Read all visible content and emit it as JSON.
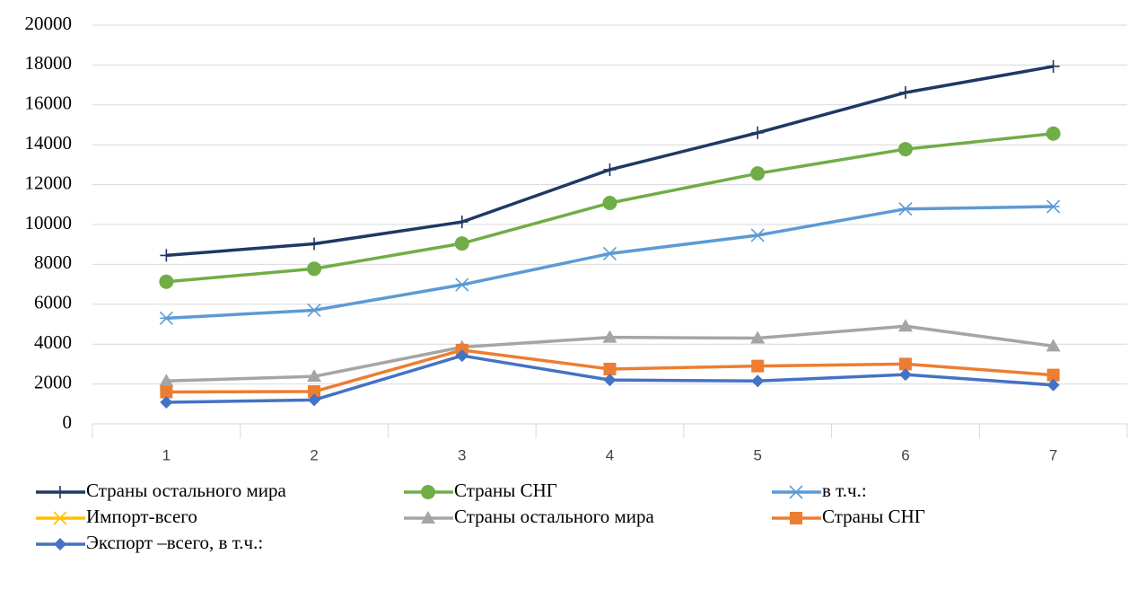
{
  "chart_data": {
    "type": "line",
    "categories": [
      "1",
      "2",
      "3",
      "4",
      "5",
      "6",
      "7"
    ],
    "series": [
      {
        "name": "Страны остального мира",
        "color": "#1f3864",
        "marker": "plus",
        "values": [
          8450,
          9030,
          10130,
          12750,
          14600,
          16620,
          17930
        ]
      },
      {
        "name": "Страны СНГ",
        "color": "#70ad47",
        "marker": "circle",
        "values": [
          7130,
          7780,
          9050,
          11080,
          12560,
          13780,
          14560
        ]
      },
      {
        "name": "в т.ч.:",
        "color": "#5b9bd5",
        "marker": "asterisk",
        "values": [
          5300,
          5700,
          6980,
          8540,
          9460,
          10780,
          10900
        ]
      },
      {
        "name": "Импорт-всего",
        "color": "#ffc000",
        "marker": "x",
        "values": [
          null,
          null,
          null,
          null,
          null,
          null,
          null
        ]
      },
      {
        "name": "Страны остального мира",
        "color": "#a5a5a5",
        "marker": "triangle",
        "values": [
          2150,
          2380,
          3850,
          4340,
          4300,
          4900,
          3900
        ]
      },
      {
        "name": "Страны СНГ",
        "color": "#ed7d31",
        "marker": "square",
        "values": [
          1600,
          1620,
          3700,
          2750,
          2900,
          3000,
          2450
        ]
      },
      {
        "name": "Экспорт –всего, в т.ч.:",
        "color": "#4472c4",
        "marker": "diamond",
        "values": [
          1080,
          1200,
          3420,
          2200,
          2150,
          2470,
          1950
        ]
      }
    ],
    "ylim": [
      0,
      20000
    ],
    "yticks": [
      0,
      2000,
      4000,
      6000,
      8000,
      10000,
      12000,
      14000,
      16000,
      18000,
      20000
    ],
    "grid": true,
    "legend": "bottom"
  }
}
